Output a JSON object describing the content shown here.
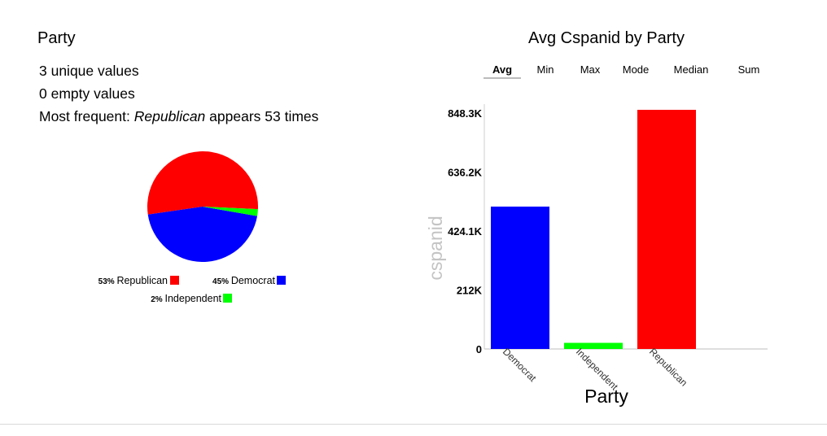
{
  "left_panel": {
    "title": "Party",
    "unique_values": "3 unique values",
    "empty_values": "0 empty values",
    "most_frequent_prefix": "Most frequent: ",
    "most_frequent_value": "Republican",
    "most_frequent_suffix": " appears 53 times"
  },
  "right_panel": {
    "title": "Avg Cspanid by Party",
    "tabs": [
      {
        "label": "Avg",
        "active": true
      },
      {
        "label": "Min",
        "active": false
      },
      {
        "label": "Max",
        "active": false
      },
      {
        "label": "Mode",
        "active": false
      },
      {
        "label": "Median",
        "active": false
      },
      {
        "label": "Sum",
        "active": false
      }
    ]
  },
  "chart_data": [
    {
      "type": "pie",
      "slices": [
        {
          "label": "Republican",
          "percent_label": "53%",
          "value": 53,
          "color": "#ff0000"
        },
        {
          "label": "Democrat",
          "percent_label": "45%",
          "value": 45,
          "color": "#0000ff"
        },
        {
          "label": "Independent",
          "percent_label": "2%",
          "value": 2,
          "color": "#00ff00"
        }
      ],
      "legend_placement": "bottom"
    },
    {
      "type": "bar",
      "categories": [
        "Democrat",
        "Independent",
        "Republican"
      ],
      "values": [
        512000,
        22000,
        860000
      ],
      "colors": [
        "#0000ff",
        "#00ff00",
        "#ff0000"
      ],
      "xlabel": "Party",
      "ylabel": "cspanid",
      "yticks": [
        0,
        212000,
        424100,
        636200,
        848300
      ],
      "ytick_labels": [
        "0",
        "212K",
        "424.1K",
        "636.2K",
        "848.3K"
      ],
      "ylim": [
        0,
        848300
      ],
      "grid": false
    }
  ]
}
